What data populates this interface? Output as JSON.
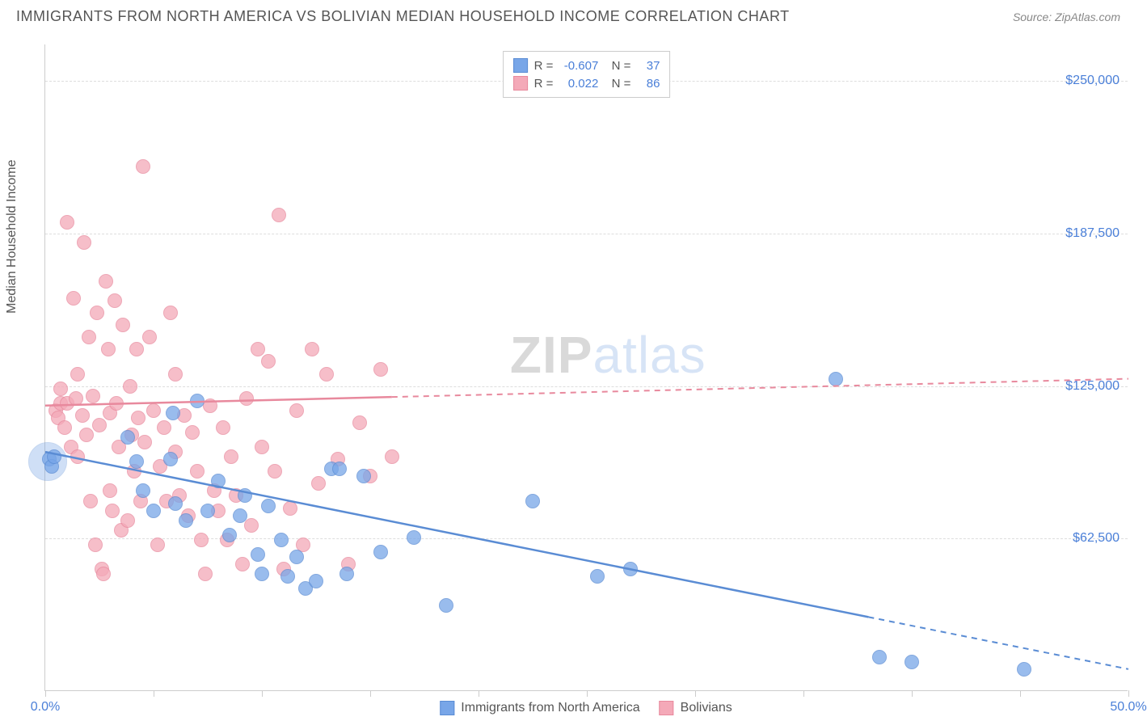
{
  "title": "IMMIGRANTS FROM NORTH AMERICA VS BOLIVIAN MEDIAN HOUSEHOLD INCOME CORRELATION CHART",
  "source": "Source: ZipAtlas.com",
  "watermark": {
    "part1": "ZIP",
    "part2": "atlas"
  },
  "chart": {
    "type": "scatter",
    "background_color": "#ffffff",
    "grid_color": "#dddddd",
    "axis_color": "#cccccc",
    "text_color": "#555555",
    "value_color": "#4a7fd8",
    "yaxis_label": "Median Household Income",
    "xlim": [
      0,
      50
    ],
    "ylim": [
      0,
      265000
    ],
    "yticks": [
      {
        "value": 62500,
        "label": "$62,500"
      },
      {
        "value": 125000,
        "label": "$125,000"
      },
      {
        "value": 187500,
        "label": "$187,500"
      },
      {
        "value": 250000,
        "label": "$250,000"
      }
    ],
    "xticks": [
      0,
      5,
      10,
      15,
      20,
      25,
      30,
      35,
      40,
      45,
      50
    ],
    "xtick_labels": {
      "start": "0.0%",
      "end": "50.0%"
    },
    "marker_radius": 9,
    "marker_fill_opacity": 0.35,
    "marker_stroke_opacity": 0.85,
    "series": [
      {
        "name": "Immigrants from North America",
        "color": "#78a6e8",
        "stroke": "#5a8cd4",
        "r": -0.607,
        "n": 37,
        "trend": {
          "x1": 0,
          "y1": 98000,
          "x2": 50,
          "y2": 9000,
          "solid_until_x": 38
        },
        "points": [
          [
            0.2,
            95000
          ],
          [
            0.3,
            92000
          ],
          [
            0.4,
            96000
          ],
          [
            3.8,
            104000
          ],
          [
            4.2,
            94000
          ],
          [
            4.5,
            82000
          ],
          [
            5.0,
            74000
          ],
          [
            5.9,
            114000
          ],
          [
            5.8,
            95000
          ],
          [
            6.0,
            77000
          ],
          [
            6.5,
            70000
          ],
          [
            7.0,
            119000
          ],
          [
            7.5,
            74000
          ],
          [
            8.0,
            86000
          ],
          [
            8.5,
            64000
          ],
          [
            9.0,
            72000
          ],
          [
            9.2,
            80000
          ],
          [
            9.8,
            56000
          ],
          [
            10.0,
            48000
          ],
          [
            10.3,
            76000
          ],
          [
            10.9,
            62000
          ],
          [
            11.2,
            47000
          ],
          [
            11.6,
            55000
          ],
          [
            12.0,
            42000
          ],
          [
            12.5,
            45000
          ],
          [
            13.2,
            91000
          ],
          [
            13.6,
            91000
          ],
          [
            13.9,
            48000
          ],
          [
            14.7,
            88000
          ],
          [
            15.5,
            57000
          ],
          [
            17.0,
            63000
          ],
          [
            18.5,
            35000
          ],
          [
            22.5,
            78000
          ],
          [
            25.5,
            47000
          ],
          [
            27.0,
            50000
          ],
          [
            36.5,
            128000
          ],
          [
            38.5,
            14000
          ],
          [
            40.0,
            12000
          ],
          [
            45.2,
            9000
          ]
        ],
        "extra_large_point": {
          "x": 0.1,
          "y": 94000,
          "radius": 24
        }
      },
      {
        "name": "Bolivians",
        "color": "#f4a9b8",
        "stroke": "#e8899d",
        "r": 0.022,
        "n": 86,
        "trend": {
          "x1": 0,
          "y1": 117000,
          "x2": 50,
          "y2": 128000,
          "solid_until_x": 16
        },
        "points": [
          [
            0.5,
            115000
          ],
          [
            0.6,
            112000
          ],
          [
            0.7,
            118000
          ],
          [
            0.7,
            124000
          ],
          [
            0.9,
            108000
          ],
          [
            1.0,
            192000
          ],
          [
            1.0,
            118000
          ],
          [
            1.2,
            100000
          ],
          [
            1.3,
            161000
          ],
          [
            1.4,
            120000
          ],
          [
            1.5,
            96000
          ],
          [
            1.5,
            130000
          ],
          [
            1.7,
            113000
          ],
          [
            1.8,
            184000
          ],
          [
            1.9,
            105000
          ],
          [
            2.0,
            145000
          ],
          [
            2.1,
            78000
          ],
          [
            2.2,
            121000
          ],
          [
            2.3,
            60000
          ],
          [
            2.4,
            155000
          ],
          [
            2.5,
            109000
          ],
          [
            2.6,
            50000
          ],
          [
            2.7,
            48000
          ],
          [
            2.8,
            168000
          ],
          [
            2.9,
            140000
          ],
          [
            3.0,
            82000
          ],
          [
            3.0,
            114000
          ],
          [
            3.1,
            74000
          ],
          [
            3.2,
            160000
          ],
          [
            3.3,
            118000
          ],
          [
            3.4,
            100000
          ],
          [
            3.5,
            66000
          ],
          [
            3.6,
            150000
          ],
          [
            3.8,
            70000
          ],
          [
            3.9,
            125000
          ],
          [
            4.0,
            105000
          ],
          [
            4.1,
            90000
          ],
          [
            4.2,
            140000
          ],
          [
            4.3,
            112000
          ],
          [
            4.4,
            78000
          ],
          [
            4.5,
            215000
          ],
          [
            4.6,
            102000
          ],
          [
            4.8,
            145000
          ],
          [
            5.0,
            115000
          ],
          [
            5.2,
            60000
          ],
          [
            5.3,
            92000
          ],
          [
            5.5,
            108000
          ],
          [
            5.6,
            78000
          ],
          [
            5.8,
            155000
          ],
          [
            6.0,
            130000
          ],
          [
            6.0,
            98000
          ],
          [
            6.2,
            80000
          ],
          [
            6.4,
            113000
          ],
          [
            6.6,
            72000
          ],
          [
            6.8,
            106000
          ],
          [
            7.0,
            90000
          ],
          [
            7.2,
            62000
          ],
          [
            7.4,
            48000
          ],
          [
            7.6,
            117000
          ],
          [
            7.8,
            82000
          ],
          [
            8.0,
            74000
          ],
          [
            8.2,
            108000
          ],
          [
            8.4,
            62000
          ],
          [
            8.6,
            96000
          ],
          [
            8.8,
            80000
          ],
          [
            9.1,
            52000
          ],
          [
            9.3,
            120000
          ],
          [
            9.5,
            68000
          ],
          [
            9.8,
            140000
          ],
          [
            10.0,
            100000
          ],
          [
            10.3,
            135000
          ],
          [
            10.6,
            90000
          ],
          [
            10.8,
            195000
          ],
          [
            11.0,
            50000
          ],
          [
            11.3,
            75000
          ],
          [
            11.6,
            115000
          ],
          [
            11.9,
            60000
          ],
          [
            12.3,
            140000
          ],
          [
            12.6,
            85000
          ],
          [
            13.0,
            130000
          ],
          [
            13.5,
            95000
          ],
          [
            14.0,
            52000
          ],
          [
            14.5,
            110000
          ],
          [
            15.0,
            88000
          ],
          [
            15.5,
            132000
          ],
          [
            16.0,
            96000
          ]
        ]
      }
    ],
    "legend_top_stats": [
      "R =",
      "N ="
    ],
    "legend_bottom": [
      {
        "label": "Immigrants from North America",
        "series": 0
      },
      {
        "label": "Bolivians",
        "series": 1
      }
    ]
  }
}
